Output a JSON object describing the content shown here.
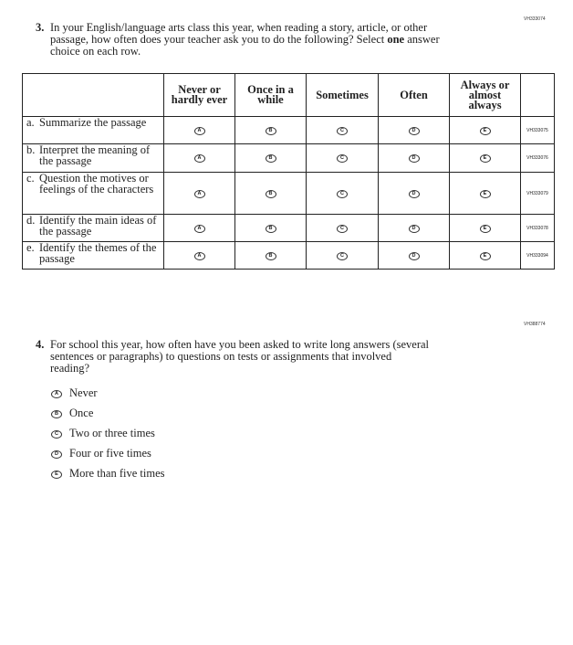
{
  "q3": {
    "code": "VH333074",
    "number": "3.",
    "text_lines": [
      "In your English/language arts class this year, when reading a story, article, or other",
      "passage, how often does your teacher ask you to do the following? Select ",
      "one",
      " answer",
      "choice on each row."
    ],
    "columns": [
      [
        "Never or",
        "hardly ever"
      ],
      [
        "Once in a",
        "while"
      ],
      [
        "Sometimes"
      ],
      [
        "Often"
      ],
      [
        "Always or",
        "almost",
        "always"
      ]
    ],
    "bubble_letters": [
      "A",
      "B",
      "C",
      "D",
      "E"
    ],
    "rows": [
      {
        "letter": "a.",
        "text": "Summarize the passage",
        "code": "VH333075"
      },
      {
        "letter": "b.",
        "text": "Interpret the meaning of the passage",
        "code": "VH333076"
      },
      {
        "letter": "c.",
        "text": "Question the motives or feelings of the characters",
        "code": "VH333079"
      },
      {
        "letter": "d.",
        "text": "Identify the main ideas of the passage",
        "code": "VH333078"
      },
      {
        "letter": "e.",
        "text": "Identify the themes of the passage",
        "code": "VH333094"
      }
    ]
  },
  "q4": {
    "code": "VH388774",
    "number": "4.",
    "text_lines": [
      "For school this year, how often have you been asked to write long answers (several",
      "sentences or paragraphs) to questions on tests or assignments that involved",
      "reading?"
    ],
    "options": [
      {
        "letter": "A",
        "label": "Never"
      },
      {
        "letter": "B",
        "label": "Once"
      },
      {
        "letter": "C",
        "label": "Two or three times"
      },
      {
        "letter": "D",
        "label": "Four or five times"
      },
      {
        "letter": "E",
        "label": "More than five times"
      }
    ]
  }
}
